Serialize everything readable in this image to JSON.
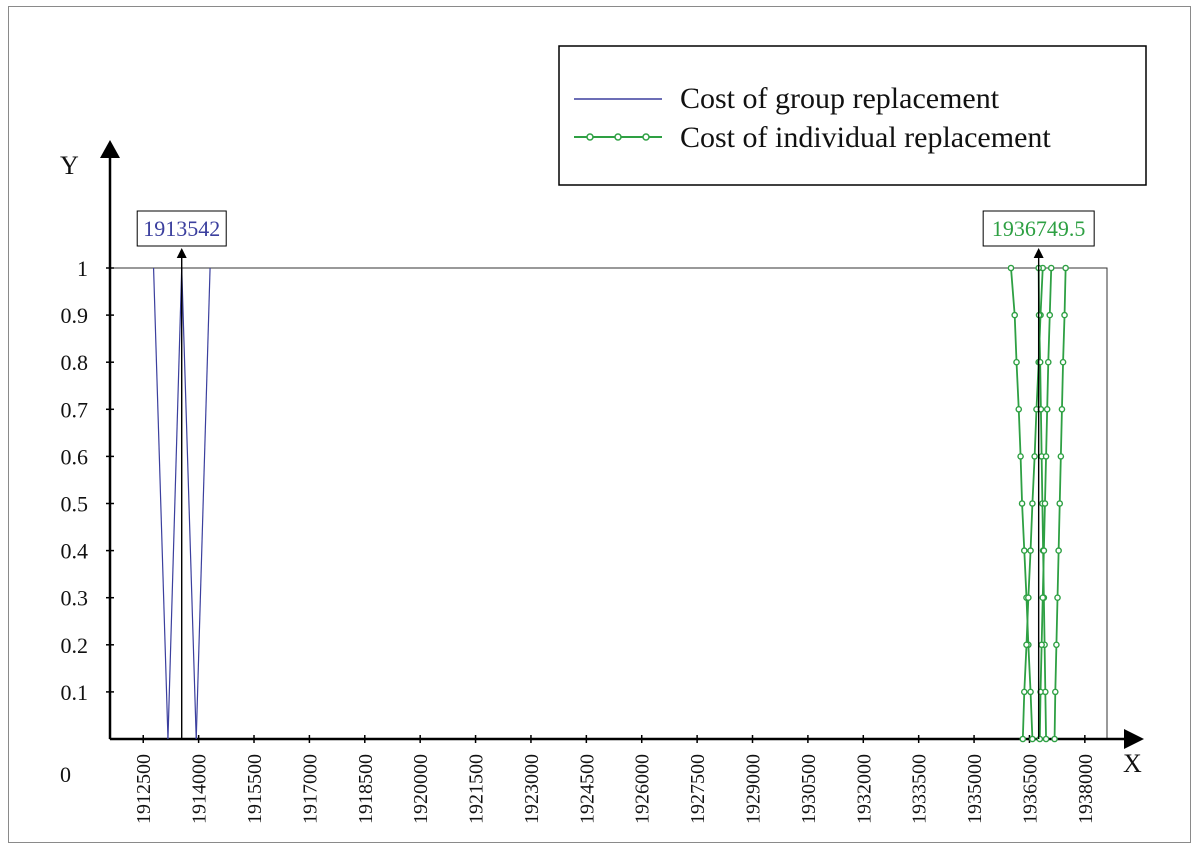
{
  "chart_data": {
    "type": "line",
    "title": "",
    "xlabel": "X",
    "ylabel": "Y",
    "origin_label": "0",
    "xlim": [
      1911600,
      1938600
    ],
    "ylim": [
      0,
      1
    ],
    "yticks": [
      0.1,
      0.2,
      0.3,
      0.4,
      0.5,
      0.6,
      0.7,
      0.8,
      0.9,
      1
    ],
    "ytick_labels": [
      "0.1",
      "0.2",
      "0.3",
      "0.4",
      "0.5",
      "0.6",
      "0.7",
      "0.8",
      "0.9",
      "1"
    ],
    "xticks": [
      1912500,
      1914000,
      1915500,
      1917000,
      1918500,
      1920000,
      1921500,
      1923000,
      1924500,
      1926000,
      1927500,
      1929000,
      1930500,
      1932000,
      1933500,
      1935000,
      1936500,
      1938000
    ],
    "xtick_labels": [
      "1912500",
      "1914000",
      "1915500",
      "1917000",
      "1918500",
      "1920000",
      "1921500",
      "1923000",
      "1924500",
      "1926000",
      "1927500",
      "1929000",
      "1930500",
      "1932000",
      "1933500",
      "1935000",
      "1936500",
      "1938000"
    ],
    "grid": false,
    "legend_position": "top-right",
    "colors": {
      "group": "#3b3f9e",
      "individual": "#2ea043",
      "axis": "#000000"
    },
    "series": [
      {
        "name": "Cost of group replacement",
        "marker": "none",
        "lines": [
          [
            [
              1912780,
              1
            ],
            [
              1913170,
              0
            ]
          ],
          [
            [
              1913170,
              0
            ],
            [
              1913542,
              1
            ]
          ],
          [
            [
              1913542,
              1
            ],
            [
              1913935,
              0
            ]
          ],
          [
            [
              1913935,
              0
            ],
            [
              1914310,
              1
            ]
          ]
        ]
      },
      {
        "name": "Cost of individual replacement",
        "marker": "circle",
        "lines": [
          [
            [
              1936000,
              1
            ],
            [
              1936100,
              0.9
            ],
            [
              1936150,
              0.8
            ],
            [
              1936210,
              0.7
            ],
            [
              1936260,
              0.6
            ],
            [
              1936300,
              0.5
            ],
            [
              1936360,
              0.4
            ],
            [
              1936420,
              0.3
            ],
            [
              1936470,
              0.2
            ],
            [
              1936530,
              0.1
            ],
            [
              1936580,
              0.0
            ]
          ],
          [
            [
              1936320,
              0.0
            ],
            [
              1936360,
              0.1
            ],
            [
              1936420,
              0.2
            ],
            [
              1936470,
              0.3
            ],
            [
              1936530,
              0.4
            ],
            [
              1936580,
              0.5
            ],
            [
              1936640,
              0.6
            ],
            [
              1936690,
              0.7
            ],
            [
              1936749.5,
              0.8
            ],
            [
              1936800,
              0.9
            ],
            [
              1936860,
              1
            ]
          ],
          [
            [
              1936749.5,
              1
            ],
            [
              1936760,
              0.9
            ],
            [
              1936790,
              0.8
            ],
            [
              1936810,
              0.7
            ],
            [
              1936830,
              0.6
            ],
            [
              1936850,
              0.5
            ],
            [
              1936870,
              0.4
            ],
            [
              1936890,
              0.3
            ],
            [
              1936910,
              0.2
            ],
            [
              1936930,
              0.1
            ],
            [
              1936950,
              0.0
            ]
          ],
          [
            [
              1936780,
              0.0
            ],
            [
              1936800,
              0.1
            ],
            [
              1936830,
              0.2
            ],
            [
              1936860,
              0.3
            ],
            [
              1936890,
              0.4
            ],
            [
              1936920,
              0.5
            ],
            [
              1936950,
              0.6
            ],
            [
              1936980,
              0.7
            ],
            [
              1937010,
              0.8
            ],
            [
              1937050,
              0.9
            ],
            [
              1937090,
              1
            ]
          ],
          [
            [
              1937180,
              0.0
            ],
            [
              1937200,
              0.1
            ],
            [
              1937230,
              0.2
            ],
            [
              1937260,
              0.3
            ],
            [
              1937290,
              0.4
            ],
            [
              1937320,
              0.5
            ],
            [
              1937350,
              0.6
            ],
            [
              1937380,
              0.7
            ],
            [
              1937410,
              0.8
            ],
            [
              1937450,
              0.9
            ],
            [
              1937480,
              1
            ]
          ]
        ]
      }
    ],
    "annotations": [
      {
        "text": "1913542",
        "x": 1913542,
        "series": "Cost of group replacement"
      },
      {
        "text": "1936749.5",
        "x": 1936749.5,
        "series": "Cost of individual replacement"
      }
    ]
  }
}
